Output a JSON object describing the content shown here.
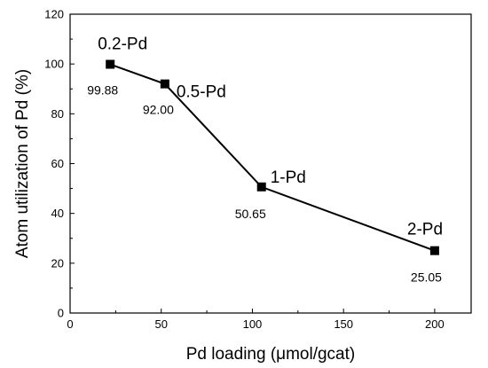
{
  "chart_data": {
    "type": "line",
    "title": "",
    "xlabel": "Pd loading (μmol/gcat)",
    "ylabel": "Atom utilization of Pd (%)",
    "xlim": [
      0,
      220
    ],
    "ylim": [
      0,
      120
    ],
    "xticks": [
      0,
      50,
      100,
      150,
      200
    ],
    "yticks": [
      0,
      20,
      40,
      60,
      80,
      100,
      120
    ],
    "grid": false,
    "marker": "square",
    "color": "#000000",
    "series": [
      {
        "points": [
          {
            "x": 22,
            "y": 99.88,
            "name": "0.2-Pd",
            "label": "99.88"
          },
          {
            "x": 52,
            "y": 92.0,
            "name": "0.5-Pd",
            "label": "92.00"
          },
          {
            "x": 105,
            "y": 50.65,
            "name": "1-Pd",
            "label": "50.65"
          },
          {
            "x": 200,
            "y": 25.05,
            "name": "2-Pd",
            "label": "25.05"
          }
        ]
      }
    ]
  }
}
